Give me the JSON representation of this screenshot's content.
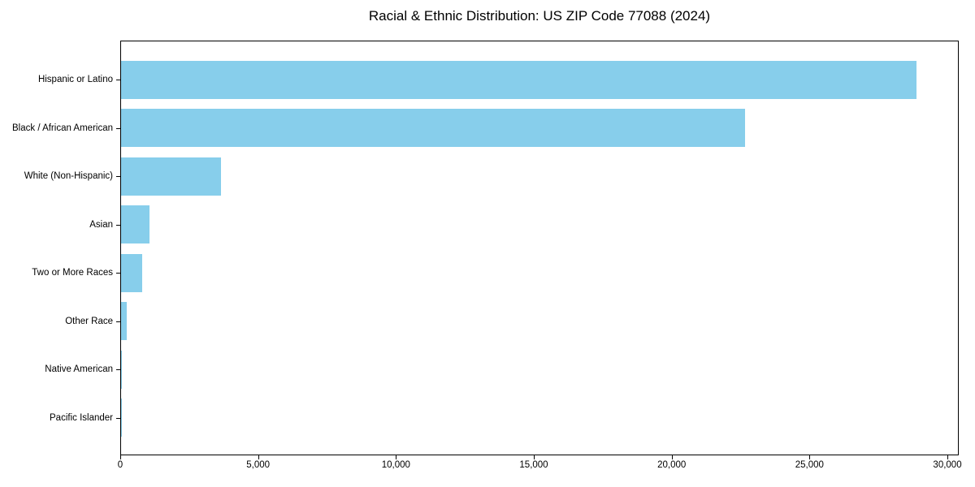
{
  "chart_data": {
    "type": "bar",
    "orientation": "horizontal",
    "title": "Racial & Ethnic Distribution: US ZIP Code 77088 (2024)",
    "categories": [
      "Hispanic or Latino",
      "Black / African American",
      "White (Non-Hispanic)",
      "Asian",
      "Two or More Races",
      "Other Race",
      "Native American",
      "Pacific Islander"
    ],
    "values": [
      28850,
      22620,
      3620,
      1030,
      770,
      220,
      35,
      10
    ],
    "xlabel": "",
    "ylabel": "",
    "xlim": [
      0,
      30353
    ],
    "x_ticks": [
      0,
      5000,
      10000,
      15000,
      20000,
      25000,
      30000
    ],
    "x_tick_labels": [
      "0",
      "5,000",
      "10,000",
      "15,000",
      "20,000",
      "25,000",
      "30,000"
    ],
    "bar_color": "#87CEEB",
    "text_color": "#000000",
    "grid": false,
    "legend_position": "none",
    "frame": "full-box"
  }
}
